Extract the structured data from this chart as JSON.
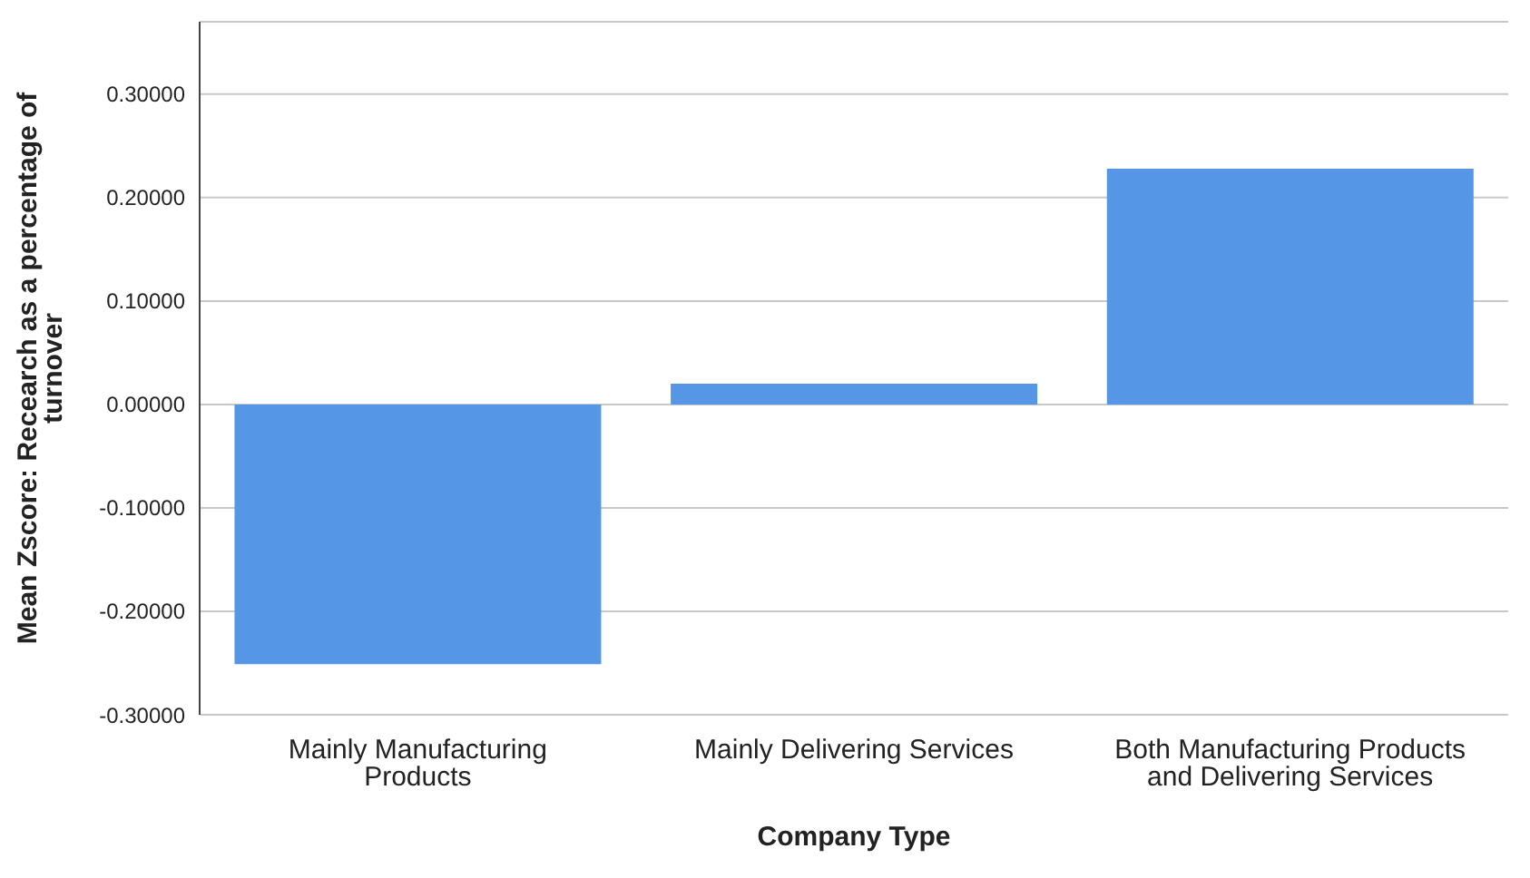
{
  "chart_data": {
    "type": "bar",
    "xlabel": "Company Type",
    "ylabel": "Mean Zscore:  Recearch as a percentage of turnover",
    "categories": [
      "Mainly Manufacturing Products",
      "Mainly Delivering Services",
      "Both Manufacturing Products and Delivering Services"
    ],
    "values": [
      -0.251,
      0.02,
      0.228
    ],
    "color": "#5596e6",
    "ylim": [
      -0.3,
      0.37
    ],
    "yticks": [
      {
        "value": -0.3,
        "label": "-0.30000"
      },
      {
        "value": -0.2,
        "label": "-0.20000"
      },
      {
        "value": -0.1,
        "label": "-0.10000"
      },
      {
        "value": 0,
        "label": "0.00000"
      },
      {
        "value": 0.1,
        "label": "0.10000"
      },
      {
        "value": 0.2,
        "label": "0.20000"
      },
      {
        "value": 0.3,
        "label": "0.30000"
      }
    ],
    "grid": "y"
  }
}
